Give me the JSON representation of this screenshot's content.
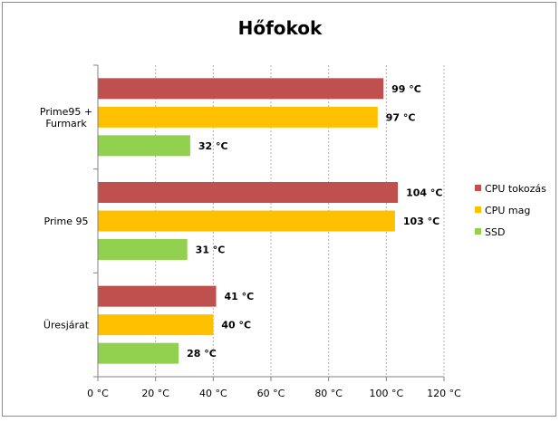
{
  "chart_data": {
    "type": "bar",
    "orientation": "horizontal",
    "title": "Hőfokok",
    "xlabel": "",
    "ylabel": "",
    "xlim": [
      0,
      120
    ],
    "xticks": [
      0,
      20,
      40,
      60,
      80,
      100,
      120
    ],
    "tick_labels": [
      "0 °C",
      "20 °C",
      "40 °C",
      "60 °C",
      "80 °C",
      "100 °C",
      "120 °C"
    ],
    "unit": "°C",
    "categories": [
      {
        "lines": [
          "Prime95 +",
          "Furmark"
        ]
      },
      {
        "lines": [
          "Prime 95"
        ]
      },
      {
        "lines": [
          "Üresjárat"
        ]
      }
    ],
    "series": [
      {
        "name": "CPU tokozás",
        "color": "#c0504d",
        "values": [
          99,
          104,
          41
        ],
        "labels": [
          "99 °C",
          "104 °C",
          "41 °C"
        ]
      },
      {
        "name": "CPU mag",
        "color": "#ffc000",
        "values": [
          97,
          103,
          40
        ],
        "labels": [
          "97 °C",
          "103 °C",
          "40 °C"
        ]
      },
      {
        "name": "SSD",
        "color": "#92d050",
        "values": [
          32,
          31,
          28
        ],
        "labels": [
          "32 °C",
          "31 °C",
          "28 °C"
        ]
      }
    ],
    "grid": true,
    "legend_position": "right"
  }
}
